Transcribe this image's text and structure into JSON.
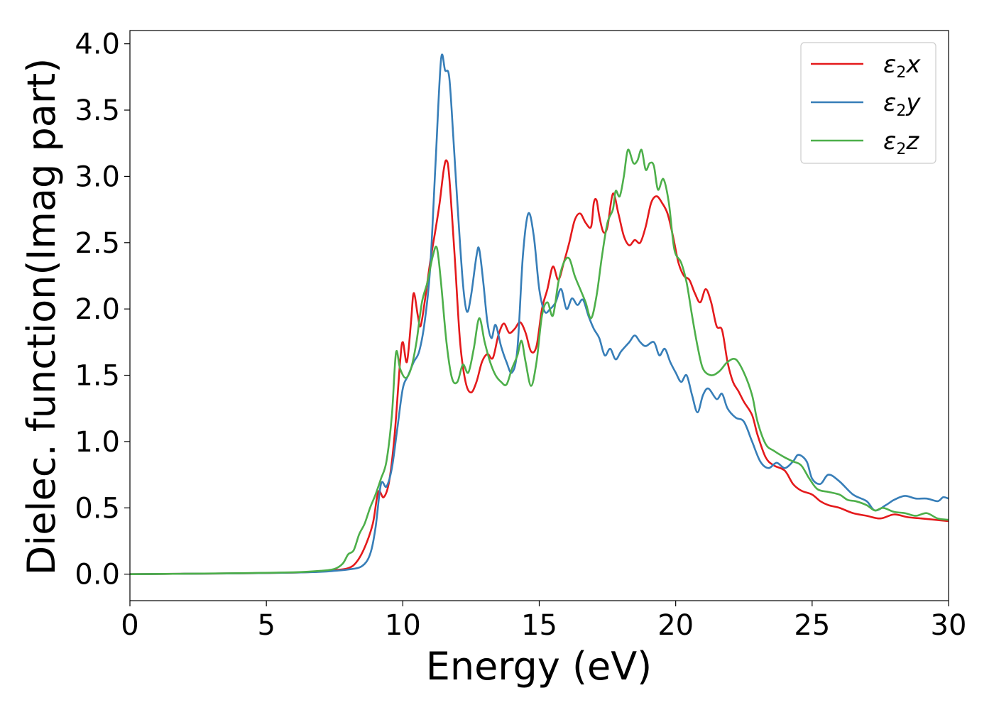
{
  "chart_data": {
    "type": "line",
    "xlabel": "Energy (eV)",
    "ylabel": "Dielec. function(Imag part)",
    "xlim": [
      0,
      30
    ],
    "ylim": [
      -0.2,
      4.1
    ],
    "xticks": [
      0,
      5,
      10,
      15,
      20,
      25,
      30
    ],
    "xtick_labels": [
      "0",
      "5",
      "10",
      "15",
      "20",
      "25",
      "30"
    ],
    "yticks": [
      0.0,
      0.5,
      1.0,
      1.5,
      2.0,
      2.5,
      3.0,
      3.5,
      4.0
    ],
    "ytick_labels": [
      "0.0",
      "0.5",
      "1.0",
      "1.5",
      "2.0",
      "2.5",
      "3.0",
      "3.5",
      "4.0"
    ],
    "grid": false,
    "legend_position": "top-right",
    "series": [
      {
        "name": "ε2x",
        "legend_main": "ε",
        "legend_sub": "2",
        "legend_suffix": "x",
        "color": "#e41a1c",
        "points": [
          [
            0,
            0
          ],
          [
            2,
            0.003
          ],
          [
            4,
            0.006
          ],
          [
            6,
            0.012
          ],
          [
            7,
            0.02
          ],
          [
            7.5,
            0.03
          ],
          [
            8,
            0.045
          ],
          [
            8.3,
            0.09
          ],
          [
            8.6,
            0.2
          ],
          [
            8.9,
            0.38
          ],
          [
            9.1,
            0.62
          ],
          [
            9.3,
            0.58
          ],
          [
            9.5,
            0.7
          ],
          [
            9.7,
            1.05
          ],
          [
            9.9,
            1.6
          ],
          [
            10.0,
            1.75
          ],
          [
            10.15,
            1.6
          ],
          [
            10.3,
            1.9
          ],
          [
            10.4,
            2.12
          ],
          [
            10.55,
            1.95
          ],
          [
            10.65,
            1.87
          ],
          [
            10.8,
            2.05
          ],
          [
            11.0,
            2.35
          ],
          [
            11.2,
            2.6
          ],
          [
            11.35,
            2.8
          ],
          [
            11.5,
            3.05
          ],
          [
            11.6,
            3.12
          ],
          [
            11.7,
            3.0
          ],
          [
            11.9,
            2.4
          ],
          [
            12.1,
            1.75
          ],
          [
            12.3,
            1.45
          ],
          [
            12.5,
            1.37
          ],
          [
            12.7,
            1.45
          ],
          [
            12.9,
            1.6
          ],
          [
            13.1,
            1.66
          ],
          [
            13.3,
            1.63
          ],
          [
            13.5,
            1.8
          ],
          [
            13.7,
            1.89
          ],
          [
            13.9,
            1.82
          ],
          [
            14.1,
            1.85
          ],
          [
            14.3,
            1.9
          ],
          [
            14.5,
            1.82
          ],
          [
            14.7,
            1.68
          ],
          [
            14.9,
            1.72
          ],
          [
            15.1,
            2.0
          ],
          [
            15.3,
            2.15
          ],
          [
            15.5,
            2.32
          ],
          [
            15.7,
            2.22
          ],
          [
            15.9,
            2.35
          ],
          [
            16.1,
            2.5
          ],
          [
            16.3,
            2.67
          ],
          [
            16.5,
            2.72
          ],
          [
            16.7,
            2.65
          ],
          [
            16.9,
            2.62
          ],
          [
            17.0,
            2.8
          ],
          [
            17.1,
            2.82
          ],
          [
            17.2,
            2.7
          ],
          [
            17.35,
            2.58
          ],
          [
            17.5,
            2.62
          ],
          [
            17.7,
            2.87
          ],
          [
            17.9,
            2.72
          ],
          [
            18.1,
            2.55
          ],
          [
            18.3,
            2.48
          ],
          [
            18.5,
            2.52
          ],
          [
            18.7,
            2.5
          ],
          [
            18.9,
            2.62
          ],
          [
            19.1,
            2.8
          ],
          [
            19.3,
            2.85
          ],
          [
            19.5,
            2.8
          ],
          [
            19.7,
            2.72
          ],
          [
            19.9,
            2.55
          ],
          [
            20.1,
            2.35
          ],
          [
            20.3,
            2.25
          ],
          [
            20.5,
            2.22
          ],
          [
            20.7,
            2.12
          ],
          [
            20.9,
            2.05
          ],
          [
            21.1,
            2.15
          ],
          [
            21.3,
            2.05
          ],
          [
            21.5,
            1.87
          ],
          [
            21.7,
            1.84
          ],
          [
            21.9,
            1.6
          ],
          [
            22.1,
            1.45
          ],
          [
            22.3,
            1.38
          ],
          [
            22.5,
            1.3
          ],
          [
            22.8,
            1.2
          ],
          [
            23.0,
            1.05
          ],
          [
            23.3,
            0.88
          ],
          [
            23.6,
            0.82
          ],
          [
            24.0,
            0.78
          ],
          [
            24.3,
            0.68
          ],
          [
            24.6,
            0.63
          ],
          [
            25.0,
            0.6
          ],
          [
            25.3,
            0.55
          ],
          [
            25.6,
            0.52
          ],
          [
            26.0,
            0.5
          ],
          [
            26.5,
            0.46
          ],
          [
            27.0,
            0.44
          ],
          [
            27.5,
            0.42
          ],
          [
            28.0,
            0.45
          ],
          [
            28.5,
            0.43
          ],
          [
            29.0,
            0.42
          ],
          [
            29.5,
            0.41
          ],
          [
            30.0,
            0.4
          ]
        ]
      },
      {
        "name": "ε2y",
        "legend_main": "ε",
        "legend_sub": "2",
        "legend_suffix": "y",
        "color": "#377eb8",
        "points": [
          [
            0,
            0
          ],
          [
            2,
            0.003
          ],
          [
            4,
            0.006
          ],
          [
            6,
            0.012
          ],
          [
            7,
            0.018
          ],
          [
            7.5,
            0.025
          ],
          [
            8,
            0.035
          ],
          [
            8.5,
            0.06
          ],
          [
            8.8,
            0.15
          ],
          [
            9.0,
            0.35
          ],
          [
            9.2,
            0.68
          ],
          [
            9.4,
            0.66
          ],
          [
            9.6,
            0.8
          ],
          [
            9.8,
            1.1
          ],
          [
            10.0,
            1.4
          ],
          [
            10.2,
            1.5
          ],
          [
            10.4,
            1.6
          ],
          [
            10.6,
            1.68
          ],
          [
            10.8,
            1.9
          ],
          [
            11.0,
            2.3
          ],
          [
            11.2,
            3.1
          ],
          [
            11.4,
            3.88
          ],
          [
            11.55,
            3.8
          ],
          [
            11.7,
            3.75
          ],
          [
            11.85,
            3.3
          ],
          [
            12.0,
            2.8
          ],
          [
            12.2,
            2.2
          ],
          [
            12.35,
            1.98
          ],
          [
            12.5,
            2.1
          ],
          [
            12.7,
            2.4
          ],
          [
            12.8,
            2.45
          ],
          [
            12.95,
            2.2
          ],
          [
            13.1,
            1.9
          ],
          [
            13.25,
            1.78
          ],
          [
            13.4,
            1.88
          ],
          [
            13.6,
            1.72
          ],
          [
            13.8,
            1.6
          ],
          [
            14.0,
            1.52
          ],
          [
            14.2,
            1.7
          ],
          [
            14.4,
            2.4
          ],
          [
            14.6,
            2.72
          ],
          [
            14.8,
            2.55
          ],
          [
            15.0,
            2.15
          ],
          [
            15.2,
            1.98
          ],
          [
            15.4,
            2.0
          ],
          [
            15.6,
            2.05
          ],
          [
            15.8,
            2.15
          ],
          [
            16.0,
            2.0
          ],
          [
            16.2,
            2.08
          ],
          [
            16.4,
            2.03
          ],
          [
            16.6,
            2.07
          ],
          [
            16.8,
            1.95
          ],
          [
            17.0,
            1.85
          ],
          [
            17.2,
            1.78
          ],
          [
            17.4,
            1.65
          ],
          [
            17.6,
            1.7
          ],
          [
            17.8,
            1.62
          ],
          [
            18.0,
            1.68
          ],
          [
            18.3,
            1.75
          ],
          [
            18.5,
            1.8
          ],
          [
            18.7,
            1.75
          ],
          [
            18.9,
            1.72
          ],
          [
            19.2,
            1.75
          ],
          [
            19.4,
            1.65
          ],
          [
            19.6,
            1.7
          ],
          [
            19.8,
            1.6
          ],
          [
            20.0,
            1.52
          ],
          [
            20.2,
            1.45
          ],
          [
            20.4,
            1.5
          ],
          [
            20.6,
            1.35
          ],
          [
            20.8,
            1.22
          ],
          [
            21.0,
            1.35
          ],
          [
            21.2,
            1.4
          ],
          [
            21.5,
            1.32
          ],
          [
            21.7,
            1.36
          ],
          [
            21.9,
            1.25
          ],
          [
            22.2,
            1.18
          ],
          [
            22.5,
            1.15
          ],
          [
            22.8,
            1.0
          ],
          [
            23.1,
            0.85
          ],
          [
            23.4,
            0.8
          ],
          [
            23.7,
            0.84
          ],
          [
            24.0,
            0.8
          ],
          [
            24.3,
            0.85
          ],
          [
            24.5,
            0.9
          ],
          [
            24.8,
            0.85
          ],
          [
            25.0,
            0.72
          ],
          [
            25.3,
            0.68
          ],
          [
            25.6,
            0.75
          ],
          [
            26.0,
            0.7
          ],
          [
            26.5,
            0.6
          ],
          [
            27.0,
            0.55
          ],
          [
            27.3,
            0.48
          ],
          [
            27.7,
            0.52
          ],
          [
            28.0,
            0.56
          ],
          [
            28.4,
            0.59
          ],
          [
            28.8,
            0.57
          ],
          [
            29.2,
            0.57
          ],
          [
            29.6,
            0.55
          ],
          [
            29.8,
            0.58
          ],
          [
            30.0,
            0.57
          ]
        ]
      },
      {
        "name": "ε2z",
        "legend_main": "ε",
        "legend_sub": "2",
        "legend_suffix": "z",
        "color": "#4daf4a",
        "points": [
          [
            0,
            0
          ],
          [
            2,
            0.003
          ],
          [
            4,
            0.007
          ],
          [
            6,
            0.014
          ],
          [
            7,
            0.025
          ],
          [
            7.5,
            0.04
          ],
          [
            7.8,
            0.08
          ],
          [
            8.0,
            0.15
          ],
          [
            8.2,
            0.18
          ],
          [
            8.4,
            0.3
          ],
          [
            8.6,
            0.38
          ],
          [
            8.8,
            0.5
          ],
          [
            9.0,
            0.6
          ],
          [
            9.2,
            0.72
          ],
          [
            9.4,
            0.85
          ],
          [
            9.6,
            1.2
          ],
          [
            9.75,
            1.67
          ],
          [
            9.9,
            1.55
          ],
          [
            10.1,
            1.48
          ],
          [
            10.3,
            1.55
          ],
          [
            10.5,
            1.75
          ],
          [
            10.7,
            2.05
          ],
          [
            10.9,
            2.2
          ],
          [
            11.1,
            2.4
          ],
          [
            11.25,
            2.46
          ],
          [
            11.4,
            2.2
          ],
          [
            11.6,
            1.75
          ],
          [
            11.8,
            1.48
          ],
          [
            12.0,
            1.45
          ],
          [
            12.2,
            1.58
          ],
          [
            12.4,
            1.52
          ],
          [
            12.6,
            1.7
          ],
          [
            12.8,
            1.93
          ],
          [
            13.0,
            1.75
          ],
          [
            13.2,
            1.6
          ],
          [
            13.4,
            1.5
          ],
          [
            13.6,
            1.45
          ],
          [
            13.8,
            1.43
          ],
          [
            14.0,
            1.55
          ],
          [
            14.2,
            1.65
          ],
          [
            14.35,
            1.76
          ],
          [
            14.5,
            1.6
          ],
          [
            14.7,
            1.42
          ],
          [
            14.9,
            1.6
          ],
          [
            15.1,
            1.95
          ],
          [
            15.3,
            2.05
          ],
          [
            15.5,
            1.95
          ],
          [
            15.7,
            2.2
          ],
          [
            15.9,
            2.35
          ],
          [
            16.1,
            2.38
          ],
          [
            16.3,
            2.25
          ],
          [
            16.5,
            2.15
          ],
          [
            16.7,
            2.05
          ],
          [
            16.9,
            1.93
          ],
          [
            17.1,
            2.1
          ],
          [
            17.3,
            2.4
          ],
          [
            17.5,
            2.65
          ],
          [
            17.7,
            2.75
          ],
          [
            17.8,
            2.89
          ],
          [
            17.95,
            2.85
          ],
          [
            18.1,
            3.0
          ],
          [
            18.25,
            3.2
          ],
          [
            18.45,
            3.1
          ],
          [
            18.6,
            3.12
          ],
          [
            18.75,
            3.2
          ],
          [
            18.9,
            3.05
          ],
          [
            19.05,
            3.1
          ],
          [
            19.2,
            3.08
          ],
          [
            19.35,
            2.9
          ],
          [
            19.55,
            2.98
          ],
          [
            19.75,
            2.8
          ],
          [
            19.95,
            2.45
          ],
          [
            20.2,
            2.35
          ],
          [
            20.4,
            2.2
          ],
          [
            20.6,
            1.95
          ],
          [
            20.8,
            1.72
          ],
          [
            21.0,
            1.55
          ],
          [
            21.3,
            1.5
          ],
          [
            21.6,
            1.53
          ],
          [
            21.9,
            1.6
          ],
          [
            22.2,
            1.62
          ],
          [
            22.5,
            1.52
          ],
          [
            22.8,
            1.35
          ],
          [
            23.0,
            1.15
          ],
          [
            23.3,
            0.98
          ],
          [
            23.6,
            0.93
          ],
          [
            24.0,
            0.88
          ],
          [
            24.3,
            0.85
          ],
          [
            24.6,
            0.82
          ],
          [
            24.9,
            0.72
          ],
          [
            25.2,
            0.64
          ],
          [
            25.6,
            0.62
          ],
          [
            26.0,
            0.6
          ],
          [
            26.3,
            0.56
          ],
          [
            26.6,
            0.55
          ],
          [
            27.0,
            0.52
          ],
          [
            27.3,
            0.48
          ],
          [
            27.6,
            0.5
          ],
          [
            28.0,
            0.47
          ],
          [
            28.4,
            0.46
          ],
          [
            28.8,
            0.44
          ],
          [
            29.2,
            0.46
          ],
          [
            29.6,
            0.42
          ],
          [
            30.0,
            0.41
          ]
        ]
      }
    ]
  }
}
